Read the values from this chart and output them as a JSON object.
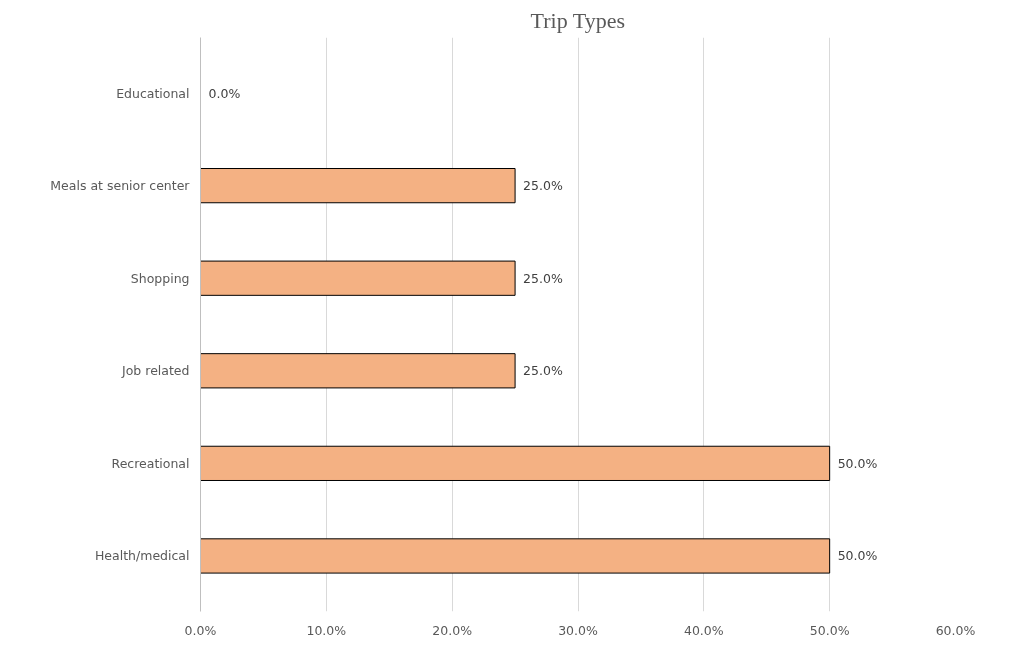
{
  "chart_data": {
    "type": "bar",
    "orientation": "horizontal",
    "title": "Trip Types",
    "categories": [
      "Educational",
      "Meals at senior center",
      "Shopping",
      "Job related",
      "Recreational",
      "Health/medical"
    ],
    "values": [
      0,
      25,
      25,
      25,
      50,
      50
    ],
    "value_labels": [
      "0.0%",
      "25.0%",
      "25.0%",
      "25.0%",
      "50.0%",
      "50.0%"
    ],
    "color": "#f4b183",
    "xlim": [
      0,
      60
    ],
    "xticks": [
      {
        "value": 0,
        "label": "0.0%"
      },
      {
        "value": 10,
        "label": "10.0%"
      },
      {
        "value": 20,
        "label": "20.0%"
      },
      {
        "value": 30,
        "label": "30.0%"
      },
      {
        "value": 40,
        "label": "40.0%"
      },
      {
        "value": 50,
        "label": "50.0%"
      },
      {
        "value": 60,
        "label": "60.0%"
      }
    ],
    "grid": "x"
  }
}
